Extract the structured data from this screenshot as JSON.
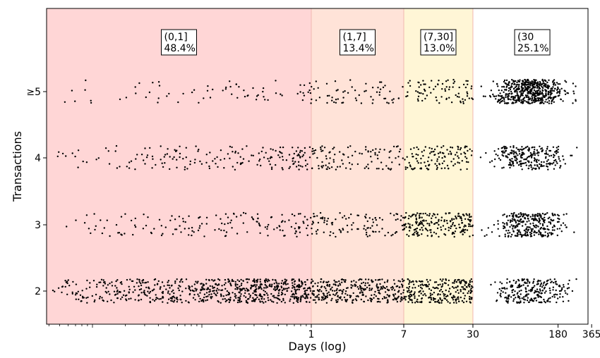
{
  "chart_data": {
    "type": "scatter",
    "xlabel": "Days (log)",
    "ylabel": "Transactions",
    "x_scale": "log",
    "x_ticks": [
      "1",
      "7",
      "30",
      "180",
      "365"
    ],
    "y_ticks": [
      "2",
      "3",
      "4",
      "≥5"
    ],
    "regions": [
      {
        "lo": 0.0,
        "hi": 1,
        "label": "(0,1]",
        "pct": "48.4%",
        "color": "#ffd6d6"
      },
      {
        "lo": 1,
        "hi": 7,
        "label": "(1,7]",
        "pct": "13.4%",
        "color": "#ffe3d8"
      },
      {
        "lo": 7,
        "hi": 30,
        "label": "(7,30]",
        "pct": "13.0%",
        "color": "#fff6d6"
      },
      {
        "lo": 30,
        "hi": 365,
        "label": "(30",
        "pct": "25.1%",
        "color": "#ffffff"
      }
    ],
    "series": [
      {
        "category": "2",
        "points_per_region": [
          700,
          300,
          250,
          250
        ]
      },
      {
        "category": "3",
        "points_per_region": [
          150,
          100,
          200,
          300
        ]
      },
      {
        "category": "4",
        "points_per_region": [
          180,
          100,
          120,
          250
        ]
      },
      {
        "category": "≥5",
        "points_per_region": [
          70,
          60,
          80,
          550
        ]
      }
    ],
    "grid": false,
    "point_color": "#000000"
  }
}
